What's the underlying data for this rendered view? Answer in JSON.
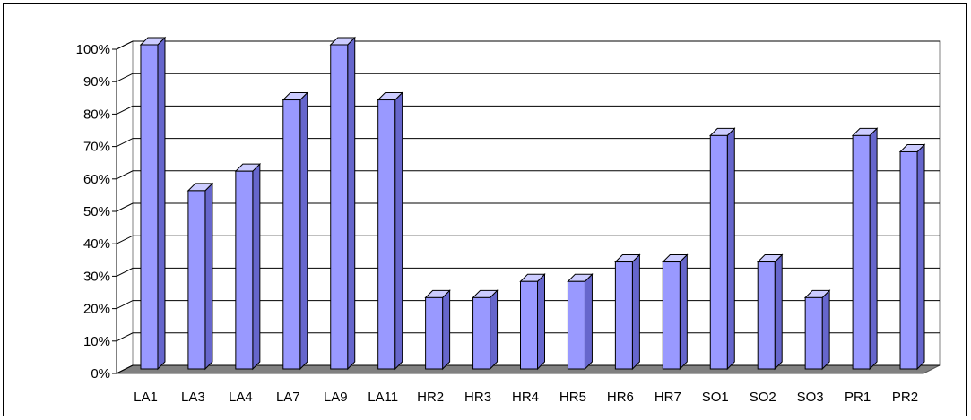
{
  "chart_data": {
    "type": "bar",
    "title": "",
    "xlabel": "",
    "ylabel": "",
    "ylim": [
      0,
      100
    ],
    "yticks": [
      0,
      10,
      20,
      30,
      40,
      50,
      60,
      70,
      80,
      90,
      100
    ],
    "ytick_suffix": "%",
    "grid": true,
    "legend": "none",
    "style": "3d-column",
    "categories": [
      "LA1",
      "LA3",
      "LA4",
      "LA7",
      "LA9",
      "LA11",
      "HR2",
      "HR3",
      "HR4",
      "HR5",
      "HR6",
      "HR7",
      "SO1",
      "SO2",
      "SO3",
      "PR1",
      "PR2"
    ],
    "values": [
      100,
      55,
      61,
      83,
      100,
      83,
      22,
      22,
      27,
      27,
      33,
      33,
      72,
      33,
      22,
      72,
      67
    ],
    "colors": {
      "bar_front": "#9999ff",
      "bar_side": "#6666cc",
      "bar_top": "#ccccff",
      "floor": "#808080",
      "wall": "#ffffff",
      "gridline": "#000000"
    }
  }
}
